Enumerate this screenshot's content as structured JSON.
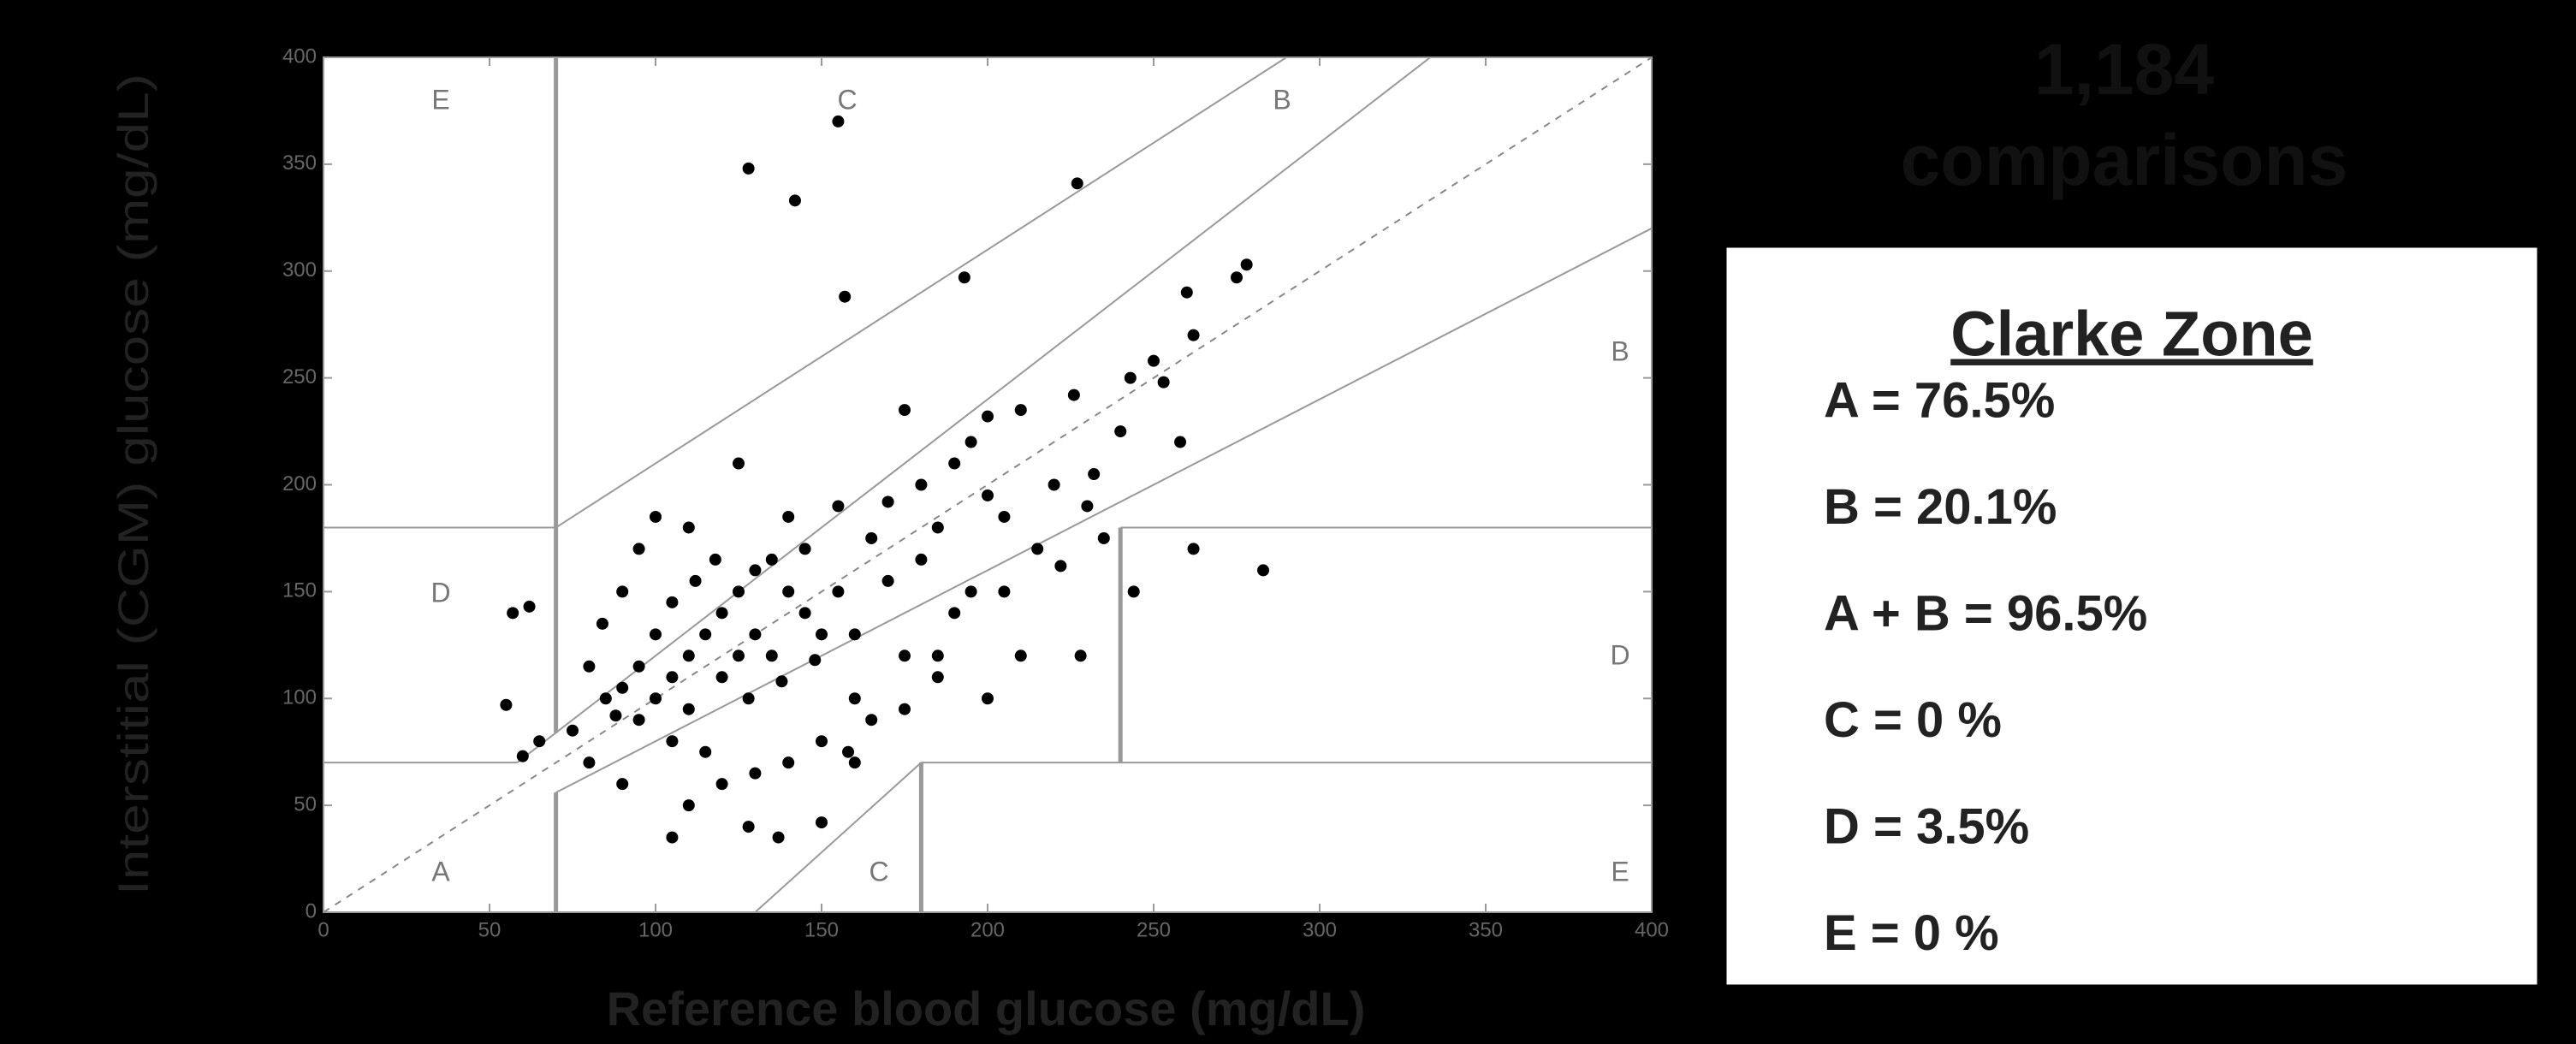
{
  "chart_data": {
    "type": "scatter",
    "x_label": "Reference blood glucose (mg/dL)",
    "y_label": "Interstitial  (CGM) glucose (mg/dL)",
    "xlim": [
      0,
      400
    ],
    "ylim": [
      0,
      400
    ],
    "xticks": [
      0,
      50,
      100,
      150,
      200,
      250,
      300,
      350,
      400
    ],
    "yticks": [
      0,
      50,
      100,
      150,
      200,
      250,
      300,
      350,
      400
    ],
    "grid": false,
    "color": "#000000",
    "x": [
      57,
      62,
      128,
      142,
      155,
      157,
      193,
      227,
      260,
      278,
      275,
      262,
      240,
      243,
      250,
      253,
      258,
      262,
      283,
      244,
      226,
      222,
      228,
      210,
      200,
      190,
      175,
      160,
      158,
      137,
      105,
      128,
      150,
      110,
      90,
      80,
      60,
      55,
      65,
      75,
      85,
      80,
      84,
      90,
      95,
      100,
      110,
      125,
      140,
      155,
      165,
      170,
      180,
      195,
      205,
      215,
      190,
      185,
      175,
      165,
      160,
      150,
      140,
      130,
      120,
      115,
      105,
      95,
      100,
      105,
      110,
      115,
      120,
      125,
      130,
      135,
      140,
      145,
      150,
      155,
      145,
      120,
      125,
      130,
      135,
      110,
      100,
      95,
      90,
      88,
      105,
      112,
      118,
      128,
      138,
      148,
      160,
      170,
      180,
      185,
      200,
      230,
      235,
      195,
      210,
      200,
      185,
      175,
      205,
      220,
      232
    ],
    "values": [
      140,
      143,
      348,
      333,
      370,
      288,
      297,
      341,
      290,
      303,
      297,
      270,
      225,
      250,
      258,
      248,
      220,
      170,
      160,
      150,
      242,
      162,
      120,
      235,
      232,
      210,
      235,
      70,
      75,
      35,
      35,
      40,
      42,
      50,
      60,
      70,
      73,
      97,
      80,
      85,
      100,
      115,
      135,
      150,
      170,
      185,
      180,
      210,
      185,
      190,
      175,
      192,
      200,
      220,
      185,
      170,
      140,
      110,
      95,
      90,
      100,
      80,
      70,
      65,
      60,
      75,
      80,
      90,
      100,
      110,
      120,
      130,
      140,
      150,
      160,
      165,
      150,
      140,
      130,
      150,
      170,
      110,
      120,
      130,
      120,
      95,
      130,
      115,
      105,
      92,
      145,
      155,
      165,
      100,
      108,
      118,
      130,
      155,
      165,
      180,
      195,
      190,
      175,
      150,
      120,
      100,
      120,
      120,
      150,
      200,
      205
    ],
    "zone_lines": [
      [
        0,
        70,
        58.33,
        70
      ],
      [
        58.33,
        70,
        333.33,
        400
      ],
      [
        70,
        84,
        70,
        400
      ],
      [
        0,
        180,
        70,
        180
      ],
      [
        70,
        180,
        290,
        400
      ],
      [
        70,
        0,
        70,
        56
      ],
      [
        70,
        56,
        400,
        320
      ],
      [
        180,
        0,
        180,
        70
      ],
      [
        180,
        70,
        400,
        70
      ],
      [
        240,
        70,
        240,
        180
      ],
      [
        240,
        180,
        400,
        180
      ],
      [
        130,
        0,
        180,
        70
      ]
    ],
    "diagonal": [
      0,
      0,
      400,
      400
    ],
    "zone_labels": [
      "E",
      "C",
      "B",
      "B",
      "D",
      "D",
      "A",
      "C",
      "E"
    ],
    "count": "1,184",
    "count_label": "comparisons",
    "legend_title": "Clarke Zone",
    "legend_lines": [
      "A = 76.5%",
      "B = 20.1%",
      "A + B = 96.5%",
      "C =  0 %",
      "D = 3.5%",
      "E =   0 %"
    ]
  }
}
